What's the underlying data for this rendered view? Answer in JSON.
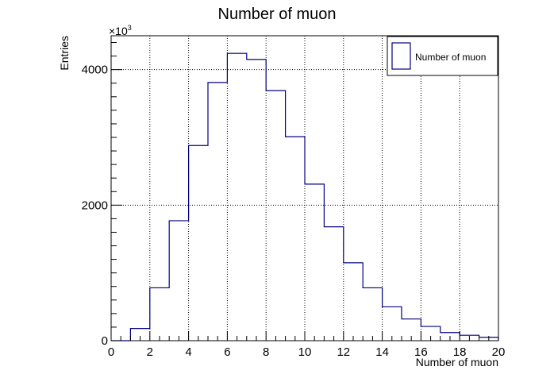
{
  "chart_data": {
    "type": "histogram",
    "title": "Number of muon",
    "xlabel": "Number of muon",
    "ylabel": "Entries",
    "y_multiplier": "×10",
    "y_multiplier_exp": "3",
    "xlim": [
      0,
      20
    ],
    "ylim": [
      0,
      4.5
    ],
    "grid": true,
    "legend_position": "top-right",
    "x_ticks": [
      "0",
      "2",
      "4",
      "6",
      "8",
      "10",
      "12",
      "14",
      "16",
      "18",
      "20"
    ],
    "y_ticks": [
      "0",
      "2000",
      "4000"
    ],
    "bins": [
      0,
      1,
      2,
      3,
      4,
      5,
      6,
      7,
      8,
      9,
      10,
      11,
      12,
      13,
      14,
      15,
      16,
      17,
      18,
      19,
      20
    ],
    "series": [
      {
        "name": "Number of muon",
        "color": "#000080",
        "values": [
          0,
          0.18,
          0.78,
          1.77,
          2.88,
          3.81,
          4.24,
          4.15,
          3.69,
          3.01,
          2.31,
          1.68,
          1.15,
          0.78,
          0.5,
          0.32,
          0.21,
          0.12,
          0.08,
          0.05
        ]
      }
    ]
  }
}
